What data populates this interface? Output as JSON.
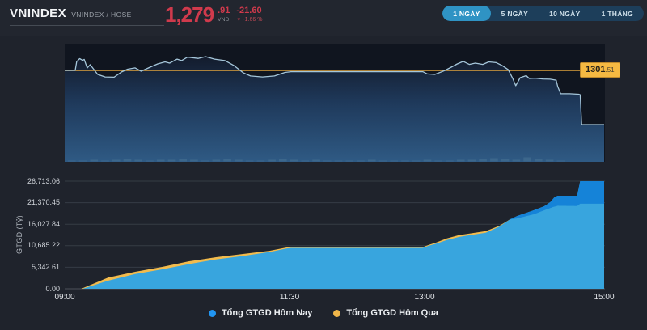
{
  "header": {
    "title": "VNINDEX",
    "subtitle": "VNINDEX / HOSE",
    "price": {
      "main": "1,279",
      "decimals": ".91",
      "currency": "VND",
      "change": "-21.60",
      "arrow": "▼",
      "change_pct": "-1.66 %"
    },
    "range_buttons": [
      {
        "label": "1 NGÀY",
        "active": true
      },
      {
        "label": "5 NGÀY",
        "active": false
      },
      {
        "label": "10 NGÀY",
        "active": false
      },
      {
        "label": "1 THÁNG",
        "active": false
      }
    ]
  },
  "chart_data": [
    {
      "type": "area",
      "name": "vnindex-intraday-price",
      "x_unit": "minutes_since_09:00",
      "x_ticks": [
        {
          "label": "09:00",
          "min": 0
        },
        {
          "label": "11:30",
          "min": 150
        },
        {
          "label": "13:00",
          "min": 240
        },
        {
          "label": "15:00",
          "min": 360
        }
      ],
      "reference": {
        "value": 1301.51,
        "label_main": "1301",
        "label_frac": ".51",
        "color": "#dda23c"
      },
      "close_value": 1279.91,
      "line_color": "#a5c6da",
      "points": [
        [
          0,
          1301.5
        ],
        [
          7,
          1301.5
        ],
        [
          8,
          1305.0
        ],
        [
          10,
          1306.2
        ],
        [
          12,
          1305.5
        ],
        [
          13,
          1305.9
        ],
        [
          15,
          1302.5
        ],
        [
          17,
          1303.8
        ],
        [
          22,
          1299.9
        ],
        [
          27,
          1298.9
        ],
        [
          33,
          1298.8
        ],
        [
          38,
          1300.9
        ],
        [
          42,
          1302.0
        ],
        [
          47,
          1302.5
        ],
        [
          51,
          1301.2
        ],
        [
          57,
          1302.8
        ],
        [
          62,
          1304.1
        ],
        [
          67,
          1304.9
        ],
        [
          70,
          1304.4
        ],
        [
          75,
          1306.0
        ],
        [
          78,
          1305.4
        ],
        [
          82,
          1306.8
        ],
        [
          89,
          1306.3
        ],
        [
          94,
          1307.0
        ],
        [
          100,
          1306.0
        ],
        [
          107,
          1305.4
        ],
        [
          113,
          1303.4
        ],
        [
          119,
          1300.6
        ],
        [
          124,
          1299.3
        ],
        [
          132,
          1298.9
        ],
        [
          140,
          1299.3
        ],
        [
          147,
          1300.7
        ],
        [
          151,
          1301.0
        ],
        [
          239,
          1301.0
        ],
        [
          242,
          1300.1
        ],
        [
          247,
          1299.9
        ],
        [
          253,
          1301.3
        ],
        [
          258,
          1302.8
        ],
        [
          262,
          1304.1
        ],
        [
          266,
          1305.1
        ],
        [
          270,
          1303.9
        ],
        [
          274,
          1304.4
        ],
        [
          279,
          1303.9
        ],
        [
          283,
          1304.9
        ],
        [
          288,
          1304.6
        ],
        [
          292,
          1303.4
        ],
        [
          296,
          1301.8
        ],
        [
          299,
          1298.3
        ],
        [
          301,
          1295.4
        ],
        [
          304,
          1298.6
        ],
        [
          308,
          1299.4
        ],
        [
          310,
          1298.3
        ],
        [
          314,
          1298.4
        ],
        [
          319,
          1298.1
        ],
        [
          324,
          1298.0
        ],
        [
          328,
          1297.6
        ],
        [
          329,
          1295.1
        ],
        [
          331,
          1292.2
        ],
        [
          337,
          1292.2
        ],
        [
          343,
          1292.0
        ],
        [
          344,
          1291.8
        ],
        [
          345,
          1279.9
        ],
        [
          360,
          1279.91
        ]
      ],
      "volume_bars": [
        1,
        1,
        2,
        1,
        2,
        3,
        2,
        1,
        2,
        2,
        3,
        2,
        1,
        2,
        3,
        2,
        1,
        1,
        2,
        3,
        2,
        1,
        2,
        1,
        1,
        1,
        1,
        2,
        1,
        1,
        1,
        1,
        2,
        1,
        1,
        2,
        2,
        3,
        4,
        3,
        2,
        5,
        3,
        2,
        1,
        0
      ]
    },
    {
      "type": "area",
      "name": "cumulative-trading-value",
      "ylabel": "GTGD (Tỷ)",
      "y_max": 26713.06,
      "y_tick_labels": [
        "26,713.06",
        "21,370.45",
        "16,027.84",
        "10,685.22",
        "5,342.61",
        "0.00"
      ],
      "x_ticks": [
        {
          "label": "09:00",
          "min": 0
        },
        {
          "label": "11:30",
          "min": 150
        },
        {
          "label": "13:00",
          "min": 240
        },
        {
          "label": "15:00",
          "min": 360
        }
      ],
      "series": [
        {
          "name": "Tổng GTGD Hôm Nay",
          "color": "#38a5de",
          "excess_color": "#1583d8",
          "points": [
            [
              0,
              0
            ],
            [
              12,
              0
            ],
            [
              29,
              2000
            ],
            [
              47,
              3650
            ],
            [
              65,
              4820
            ],
            [
              83,
              6130
            ],
            [
              101,
              7290
            ],
            [
              119,
              8130
            ],
            [
              137,
              9140
            ],
            [
              148,
              10000
            ],
            [
              151,
              10140
            ],
            [
              239,
              10140
            ],
            [
              243,
              10700
            ],
            [
              248,
              11200
            ],
            [
              255,
              12100
            ],
            [
              263,
              12850
            ],
            [
              272,
              13400
            ],
            [
              281,
              13900
            ],
            [
              290,
              15400
            ],
            [
              297,
              17200
            ],
            [
              302,
              18070
            ],
            [
              313,
              19480
            ],
            [
              320,
              20490
            ],
            [
              324,
              21500
            ],
            [
              327,
              22800
            ],
            [
              329,
              23100
            ],
            [
              342,
              23100
            ],
            [
              344,
              26713
            ],
            [
              360,
              26713.06
            ]
          ]
        },
        {
          "name": "Tổng GTGD Hôm Qua",
          "color": "#f2bb4d",
          "points": [
            [
              0,
              0
            ],
            [
              11,
              0
            ],
            [
              29,
              2800
            ],
            [
              47,
              4220
            ],
            [
              65,
              5420
            ],
            [
              83,
              6830
            ],
            [
              101,
              7830
            ],
            [
              119,
              8640
            ],
            [
              137,
              9440
            ],
            [
              148,
              10250
            ],
            [
              151,
              10350
            ],
            [
              239,
              10350
            ],
            [
              243,
              10900
            ],
            [
              248,
              11500
            ],
            [
              255,
              12500
            ],
            [
              263,
              13300
            ],
            [
              272,
              13800
            ],
            [
              281,
              14300
            ],
            [
              290,
              15600
            ],
            [
              297,
              17200
            ],
            [
              302,
              17470
            ],
            [
              313,
              18480
            ],
            [
              320,
              19480
            ],
            [
              326,
              20300
            ],
            [
              329,
              20600
            ],
            [
              342,
              20550
            ],
            [
              344,
              21100
            ],
            [
              360,
              21100
            ]
          ]
        }
      ]
    }
  ],
  "legend": {
    "items": [
      {
        "label": "Tổng GTGD Hôm Nay",
        "color": "#2196f3"
      },
      {
        "label": "Tổng GTGD Hôm Qua",
        "color": "#f0b64a"
      }
    ]
  }
}
